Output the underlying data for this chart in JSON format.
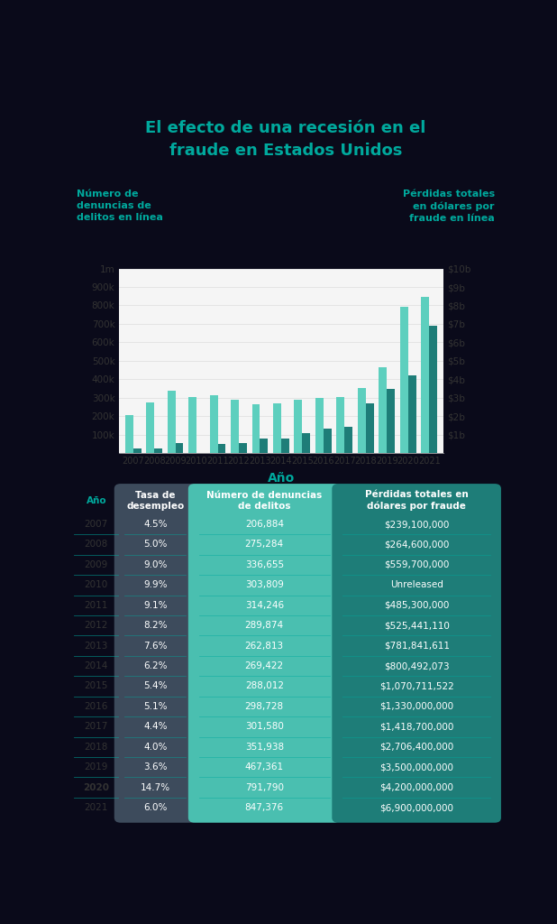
{
  "title_line1": "El efecto de una recesión en el",
  "title_line2": "fraude en Estados Unidos",
  "title_color": "#00a99d",
  "bg_color": "#0a0a1a",
  "chart_bg": "#f5f5f5",
  "years": [
    2007,
    2008,
    2009,
    2010,
    2011,
    2012,
    2013,
    2014,
    2015,
    2016,
    2017,
    2018,
    2019,
    2020,
    2021
  ],
  "complaints": [
    206884,
    275284,
    336655,
    303809,
    314246,
    289874,
    262813,
    269422,
    288012,
    298728,
    301580,
    351938,
    467361,
    791790,
    847376
  ],
  "losses_billions": [
    0.239,
    0.2646,
    0.5597,
    0,
    0.4853,
    0.5254,
    0.7818,
    0.8005,
    1.0707,
    1.33,
    1.4187,
    2.7064,
    3.5,
    4.2,
    6.9
  ],
  "bar_color_complaints": "#5dcfbe",
  "bar_color_losses": "#1e7d78",
  "ylabel_left": "Número de\ndenuncias de\ndelitos en línea",
  "ylabel_right": "Pérdidas totales\nen dólares por\nfraude en línea",
  "xlabel": "Año",
  "left_ticks": [
    0,
    100000,
    200000,
    300000,
    400000,
    500000,
    600000,
    700000,
    800000,
    900000,
    1000000
  ],
  "left_tick_labels": [
    "",
    "100k",
    "200k",
    "300k",
    "400k",
    "500k",
    "600k",
    "700k",
    "800k",
    "900k",
    "1m"
  ],
  "right_ticks": [
    0,
    1000000000,
    2000000000,
    3000000000,
    4000000000,
    5000000000,
    6000000000,
    7000000000,
    8000000000,
    9000000000,
    10000000000
  ],
  "right_tick_labels": [
    "",
    "$1b",
    "$2b",
    "$3b",
    "$4b",
    "$5b",
    "$6b",
    "$7b",
    "$8b",
    "$9b",
    "$10b"
  ],
  "table_years": [
    "2007",
    "2008",
    "2009",
    "2010",
    "2011",
    "2012",
    "2013",
    "2014",
    "2015",
    "2016",
    "2017",
    "2018",
    "2019",
    "2020",
    "2021"
  ],
  "table_unemployment": [
    "4.5%",
    "5.0%",
    "9.0%",
    "9.9%",
    "9.1%",
    "8.2%",
    "7.6%",
    "6.2%",
    "5.4%",
    "5.1%",
    "4.4%",
    "4.0%",
    "3.6%",
    "14.7%",
    "6.0%"
  ],
  "table_complaints": [
    "206,884",
    "275,284",
    "336,655",
    "303,809",
    "314,246",
    "289,874",
    "262,813",
    "269,422",
    "288,012",
    "298,728",
    "301,580",
    "351,938",
    "467,361",
    "791,790",
    "847,376"
  ],
  "table_losses": [
    "$239,100,000",
    "$264,600,000",
    "$559,700,000",
    "Unreleased",
    "$485,300,000",
    "$525,441,110",
    "$781,841,611",
    "$800,492,073",
    "$1,070,711,522",
    "$1,330,000,000",
    "$1,418,700,000",
    "$2,706,400,000",
    "$3,500,000,000",
    "$4,200,000,000",
    "$6,900,000,000"
  ],
  "col_header_year": "Año",
  "col_header_unemp": "Tasa de\ndesempleo",
  "col_header_comp": "Número de denuncias\nde delitos",
  "col_header_loss": "Pérdidas totales en\ndólares por fraude",
  "col_unemp_bg": "#3d4b5c",
  "col_comp_bg": "#4abfb0",
  "col_loss_bg": "#1e7d78",
  "table_bg": "#e8f0f0",
  "teal_color": "#00a99d",
  "separator_color": "#00a99d"
}
